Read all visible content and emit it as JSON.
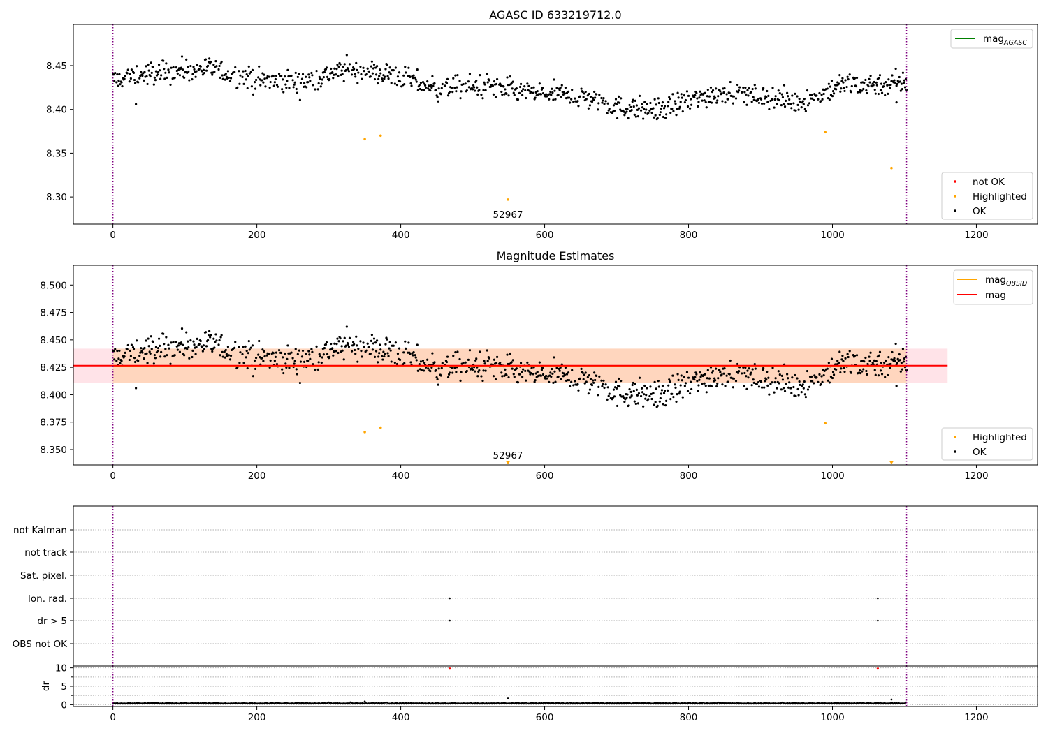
{
  "colors": {
    "ok": "#000000",
    "highlighted": "#ffa500",
    "not_ok": "#ff0000",
    "mag_agasc_line": "#008000",
    "mag_obsid_line": "#ffa500",
    "mag_line": "#ff0000",
    "obs_boundary": "#800080",
    "band_outer": "#ffc0cb",
    "band_inner": "#ffd1b0"
  },
  "chart_data": [
    {
      "type": "scatter",
      "title": "AGASC ID 633219712.0",
      "xlim": [
        -55,
        1285
      ],
      "ylim": [
        8.269,
        8.497
      ],
      "xticks": [
        0,
        200,
        400,
        600,
        800,
        1000,
        1200
      ],
      "yticks": [
        8.3,
        8.35,
        8.4,
        8.45
      ],
      "ytick_labels": [
        "8.30",
        "8.35",
        "8.40",
        "8.45"
      ],
      "obs_boundaries": [
        0,
        1103
      ],
      "obsid_annotation": {
        "text": "52967",
        "x": 549
      },
      "legend_lines": [
        {
          "name": "mag$_{AGASC}$",
          "label": "mag",
          "sub": "AGASC",
          "color": "#008000"
        }
      ],
      "legend_points": [
        {
          "name": "not OK",
          "color": "#ff0000"
        },
        {
          "name": "Highlighted",
          "color": "#ffa500"
        },
        {
          "name": "OK",
          "color": "#000000"
        }
      ],
      "highlighted_points": [
        {
          "x": 350,
          "y": 8.366
        },
        {
          "x": 372,
          "y": 8.37
        },
        {
          "x": 549,
          "y": 8.297
        },
        {
          "x": 990,
          "y": 8.374
        },
        {
          "x": 1082,
          "y": 8.333
        }
      ],
      "ok_trend": [
        [
          0,
          8.433
        ],
        [
          60,
          8.442
        ],
        [
          130,
          8.447
        ],
        [
          200,
          8.433
        ],
        [
          260,
          8.43
        ],
        [
          320,
          8.445
        ],
        [
          380,
          8.441
        ],
        [
          450,
          8.424
        ],
        [
          520,
          8.427
        ],
        [
          580,
          8.418
        ],
        [
          620,
          8.418
        ],
        [
          670,
          8.412
        ],
        [
          700,
          8.402
        ],
        [
          760,
          8.4
        ],
        [
          810,
          8.412
        ],
        [
          850,
          8.421
        ],
        [
          900,
          8.415
        ],
        [
          950,
          8.408
        ],
        [
          980,
          8.415
        ],
        [
          1010,
          8.428
        ],
        [
          1103,
          8.43
        ]
      ],
      "ok_outliers": [
        {
          "x": 32,
          "y": 8.406
        },
        {
          "x": 1089,
          "y": 8.408
        }
      ]
    },
    {
      "type": "scatter",
      "title": "Magnitude Estimates",
      "xlim": [
        -55,
        1285
      ],
      "ylim": [
        8.336,
        8.518
      ],
      "xticks": [
        0,
        200,
        400,
        600,
        800,
        1000,
        1200
      ],
      "yticks": [
        8.35,
        8.375,
        8.4,
        8.425,
        8.45,
        8.475,
        8.5
      ],
      "ytick_labels": [
        "8.350",
        "8.375",
        "8.400",
        "8.425",
        "8.450",
        "8.475",
        "8.500"
      ],
      "mag": 8.4265,
      "mag_obsid": 8.426,
      "band_outer": [
        8.411,
        8.442
      ],
      "band_inner": [
        8.411,
        8.442
      ],
      "band_outer_x": [
        -55,
        1160
      ],
      "band_inner_x": [
        0,
        1103
      ],
      "obs_boundaries": [
        0,
        1103
      ],
      "obsid_annotation": {
        "text": "52967",
        "x": 549
      },
      "legend_lines": [
        {
          "name": "mag$_{OBSID}$",
          "label": "mag",
          "sub": "OBSID",
          "color": "#ffa500"
        },
        {
          "name": "mag",
          "label": "mag",
          "sub": "",
          "color": "#ff0000"
        }
      ],
      "legend_points": [
        {
          "name": "Highlighted",
          "color": "#ffa500"
        },
        {
          "name": "OK",
          "color": "#000000"
        }
      ],
      "highlighted_points": [
        {
          "x": 350,
          "y": 8.366
        },
        {
          "x": 372,
          "y": 8.37
        },
        {
          "x": 990,
          "y": 8.374
        }
      ],
      "offscale_markers": [
        {
          "x": 549
        },
        {
          "x": 1082
        }
      ]
    },
    {
      "type": "scatter",
      "title": "",
      "xlim": [
        -55,
        1285
      ],
      "xticks": [
        0,
        200,
        400,
        600,
        800,
        1000,
        1200
      ],
      "flag_rows": [
        "not Kalman",
        "not track",
        "Sat. pixel.",
        "Ion. rad.",
        "dr > 5",
        "OBS not OK"
      ],
      "flag_points": [
        {
          "row": "Ion. rad.",
          "x": 468
        },
        {
          "row": "Ion. rad.",
          "x": 1063
        },
        {
          "row": "dr > 5",
          "x": 468
        },
        {
          "row": "dr > 5",
          "x": 1063
        }
      ],
      "obs_boundaries": [
        0,
        1103
      ]
    },
    {
      "type": "scatter",
      "title": "",
      "ylabel": "dr",
      "xlim": [
        -55,
        1285
      ],
      "ylim": [
        -0.5,
        10.5
      ],
      "xticks": [
        0,
        200,
        400,
        600,
        800,
        1000,
        1200
      ],
      "yticks": [
        0,
        5,
        10
      ],
      "ytick_labels": [
        "0",
        "5",
        "10"
      ],
      "baseline_dr": 0.3,
      "not_ok_points": [
        {
          "x": 468,
          "y": 9.8
        },
        {
          "x": 1063,
          "y": 9.8
        }
      ],
      "extra_points": [
        {
          "x": 350,
          "y": 0.9
        },
        {
          "x": 549,
          "y": 1.7
        },
        {
          "x": 1082,
          "y": 1.4
        }
      ],
      "obs_boundaries": [
        0,
        1103
      ]
    }
  ]
}
